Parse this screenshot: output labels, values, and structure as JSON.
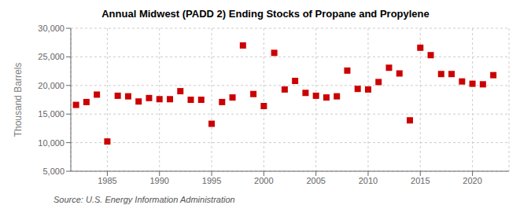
{
  "chart_data": {
    "type": "scatter",
    "title": "Annual Midwest (PADD 2) Ending Stocks of Propane and Propylene",
    "ylabel": "Thousand Barrels",
    "annotation": "Source: U.S. Energy Information Administration",
    "x": [
      1982,
      1983,
      1984,
      1985,
      1986,
      1987,
      1988,
      1989,
      1990,
      1991,
      1992,
      1993,
      1994,
      1995,
      1996,
      1997,
      1998,
      1999,
      2000,
      2001,
      2002,
      2003,
      2004,
      2005,
      2006,
      2007,
      2008,
      2009,
      2010,
      2011,
      2012,
      2013,
      2014,
      2015,
      2016,
      2017,
      2018,
      2019,
      2020,
      2021,
      2022
    ],
    "values": [
      16600,
      17100,
      18400,
      10200,
      18200,
      18100,
      17200,
      17800,
      17600,
      17600,
      19000,
      17500,
      17500,
      13300,
      17100,
      17900,
      27000,
      18500,
      16400,
      25700,
      19300,
      20800,
      18700,
      18200,
      17900,
      18100,
      22600,
      19400,
      19300,
      20600,
      23100,
      22100,
      13900,
      26600,
      25300,
      22000,
      22000,
      20700,
      20300,
      20200,
      21800
    ],
    "color": "#cc0000",
    "marker": "square",
    "xlim": [
      1981.5,
      2023.5
    ],
    "ylim": [
      5000,
      30000
    ],
    "xticks": [
      1985,
      1990,
      1995,
      2000,
      2005,
      2010,
      2015,
      2020
    ],
    "yticks": [
      {
        "value": 5000,
        "label": "5,000"
      },
      {
        "value": 10000,
        "label": "10,000"
      },
      {
        "value": 15000,
        "label": "15,000"
      },
      {
        "value": 20000,
        "label": "20,000"
      },
      {
        "value": 25000,
        "label": "25,000"
      },
      {
        "value": 30000,
        "label": "30,000"
      }
    ],
    "grid": true
  }
}
